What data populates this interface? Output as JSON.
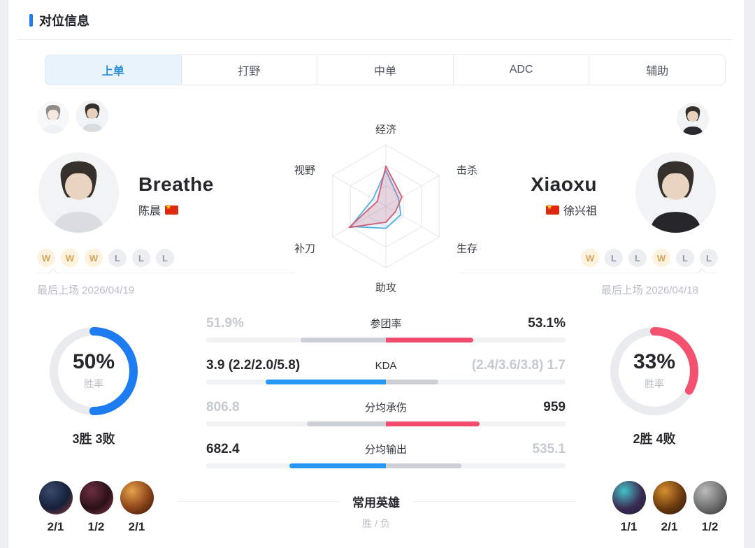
{
  "header": {
    "title": "对位信息"
  },
  "tabs": [
    {
      "label": "上单",
      "active": true
    },
    {
      "label": "打野",
      "active": false
    },
    {
      "label": "中单",
      "active": false
    },
    {
      "label": "ADC",
      "active": false
    },
    {
      "label": "辅助",
      "active": false
    }
  ],
  "players": {
    "left": {
      "name": "Breathe",
      "real_name": "陈晨",
      "flag": "china-flag",
      "recent_results": [
        "W",
        "W",
        "W",
        "L",
        "L",
        "L"
      ],
      "last_played": "最后上场 2026/04/19",
      "winrate": {
        "pct": 50,
        "text": "50%",
        "sub_label": "胜率",
        "record": "3胜 3败",
        "color": "#1d7cf2"
      },
      "champions": [
        {
          "score": "2/1",
          "colors": [
            "#3a4a6b",
            "#16203a",
            "#a03b3b"
          ]
        },
        {
          "score": "1/2",
          "colors": [
            "#6e2f3f",
            "#2a1018",
            "#8e3b4a"
          ]
        },
        {
          "score": "2/1",
          "colors": [
            "#e8a24a",
            "#8a4318",
            "#2b1208"
          ]
        }
      ]
    },
    "right": {
      "name": "Xiaoxu",
      "real_name": "徐兴祖",
      "flag": "china-flag",
      "recent_results": [
        "W",
        "L",
        "L",
        "W",
        "L",
        "L"
      ],
      "last_played": "最后上场 2026/04/18",
      "winrate": {
        "pct": 33,
        "text": "33%",
        "sub_label": "胜率",
        "record": "2胜 4败",
        "color": "#f4506f"
      },
      "champions": [
        {
          "score": "1/1",
          "colors": [
            "#46c2c8",
            "#3b2b52",
            "#171c33"
          ]
        },
        {
          "score": "2/1",
          "colors": [
            "#d88f2f",
            "#6b3a10",
            "#27140a"
          ]
        },
        {
          "score": "1/2",
          "colors": [
            "#bcbcbc",
            "#6e6e6e",
            "#2f2f2f"
          ]
        }
      ]
    }
  },
  "chart_data": {
    "type": "radar",
    "axes": [
      "经济",
      "击杀",
      "生存",
      "助攻",
      "补刀",
      "视野"
    ],
    "scale": [
      0,
      1
    ],
    "series": [
      {
        "name": "Breathe",
        "color": "#58b0e3",
        "fill": "rgba(88,176,227,0.12)",
        "values": [
          0.58,
          0.24,
          0.28,
          0.36,
          0.66,
          0.24
        ]
      },
      {
        "name": "Xiaoxu",
        "color": "#d05c75",
        "fill": "rgba(208,92,117,0.22)",
        "values": [
          0.65,
          0.3,
          0.18,
          0.26,
          0.69,
          0.16
        ]
      }
    ]
  },
  "stats": {
    "rows": [
      {
        "label": "参团率",
        "left": {
          "text": "51.9%",
          "value": 51.9,
          "winner": false
        },
        "right": {
          "text": "53.1%",
          "value": 53.1,
          "winner": true
        }
      },
      {
        "label": "KDA",
        "left": {
          "text": "3.9 (2.2/2.0/5.8)",
          "value": 3.9,
          "winner": true
        },
        "right": {
          "text": "(2.4/3.6/3.8) 1.7",
          "value": 1.7,
          "winner": false
        }
      },
      {
        "label": "分均承伤",
        "left": {
          "text": "806.8",
          "value": 806.8,
          "winner": false
        },
        "right": {
          "text": "959",
          "value": 959,
          "winner": true
        }
      },
      {
        "label": "分均输出",
        "left": {
          "text": "682.4",
          "value": 682.4,
          "winner": true
        },
        "right": {
          "text": "535.1",
          "value": 535.1,
          "winner": false
        }
      }
    ],
    "left_color": "#2598f5",
    "right_color": "#f34a70",
    "loser_color": "#ccd0d6"
  },
  "heroes_section": {
    "title": "常用英雄",
    "subtitle": "胜 / 负"
  }
}
